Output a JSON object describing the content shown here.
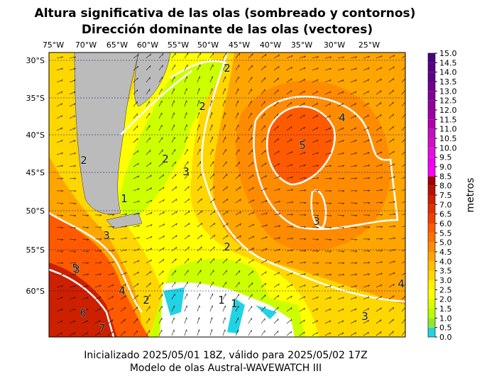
{
  "header": {
    "title_line1": "Altura significativa de las olas (sombreado y contornos)",
    "title_line2": "Dirección dominante de las olas (vectores)"
  },
  "map": {
    "lon_labels": [
      "75°W",
      "70°W",
      "65°W",
      "60°W",
      "55°W",
      "50°W",
      "45°W",
      "40°W",
      "35°W",
      "30°W",
      "25°W"
    ],
    "lat_labels": [
      "30°S",
      "35°S",
      "40°S",
      "45°S",
      "50°S",
      "55°S",
      "60°S"
    ],
    "contour_labels": [
      "4",
      "5",
      "3",
      "2",
      "2",
      "3",
      "2",
      "1",
      "3",
      "3",
      "4",
      "2",
      "1",
      "1",
      "3",
      "4",
      "5",
      "6",
      "7",
      "2",
      "2"
    ]
  },
  "colorbar": {
    "label": "metros",
    "ticks": [
      {
        "value": 0,
        "label": "0.0"
      },
      {
        "value": 0.5,
        "label": "0.5"
      },
      {
        "value": 1,
        "label": "1.0"
      },
      {
        "value": 1.5,
        "label": "1.5"
      },
      {
        "value": 2,
        "label": "2.0"
      },
      {
        "value": 2.5,
        "label": "2.5"
      },
      {
        "value": 3,
        "label": "3.0"
      },
      {
        "value": 3.5,
        "label": "3.5"
      },
      {
        "value": 4,
        "label": "4.0"
      },
      {
        "value": 4.5,
        "label": "4.5"
      },
      {
        "value": 5,
        "label": "5.0"
      },
      {
        "value": 5.5,
        "label": "5.5"
      },
      {
        "value": 6,
        "label": "6.0"
      },
      {
        "value": 6.5,
        "label": "6.5"
      },
      {
        "value": 7,
        "label": "7.0"
      },
      {
        "value": 7.5,
        "label": "7.5"
      },
      {
        "value": 8,
        "label": "8.0"
      },
      {
        "value": 8.5,
        "label": "8.5"
      },
      {
        "value": 9,
        "label": "9.0"
      },
      {
        "value": 9.5,
        "label": "9.5"
      },
      {
        "value": 10,
        "label": "10.0"
      },
      {
        "value": 10.5,
        "label": "10.5"
      },
      {
        "value": 11,
        "label": "11.0"
      },
      {
        "value": 11.5,
        "label": "11.5"
      },
      {
        "value": 12,
        "label": "12.0"
      },
      {
        "value": 12.5,
        "label": "12.5"
      },
      {
        "value": 13,
        "label": "13.0"
      },
      {
        "value": 13.5,
        "label": "13.5"
      },
      {
        "value": 14,
        "label": "14.0"
      },
      {
        "value": 14.5,
        "label": "14.5"
      },
      {
        "value": 15,
        "label": "15.0"
      }
    ],
    "colors": [
      "#22d3e3",
      "#8fe830",
      "#b8ff00",
      "#d8ff00",
      "#ffff00",
      "#fff000",
      "#ffd700",
      "#ffc000",
      "#ffa500",
      "#ff8c00",
      "#ff7000",
      "#ff5a00",
      "#f04000",
      "#e03000",
      "#cc2000",
      "#b81000",
      "#a00000",
      "#ff00ff",
      "#f000f0",
      "#e010e0",
      "#d010c8",
      "#c010c0",
      "#b000b0",
      "#a000a8",
      "#9000a0",
      "#800098",
      "#70008f",
      "#600088",
      "#550085",
      "#4b0082"
    ]
  },
  "footer": {
    "line1": "Inicializado 2025/05/01 18Z, válido para 2025/05/02 17Z",
    "line2": "Modelo de olas Austral-WAVEWATCH III"
  }
}
